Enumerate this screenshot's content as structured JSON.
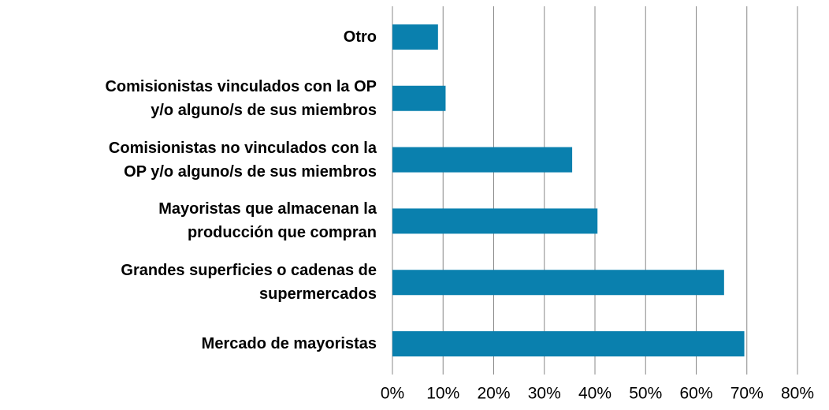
{
  "chart_data": {
    "type": "barh",
    "categories": [
      "Otro",
      "Comisionistas vinculados con la OP\ny/o alguno/s de sus miembros",
      "Comisionistas no vinculados con la\nOP y/o alguno/s de sus miembros",
      "Mayoristas que almacenan la\nproducción que compran",
      "Grandes superficies o cadenas de\nsupermercados",
      "Mercado de mayoristas"
    ],
    "values": [
      9,
      10.5,
      35.5,
      40.5,
      65.5,
      69.5
    ],
    "color": "#0a80ae",
    "xlim": [
      0,
      80
    ],
    "xticks": [
      {
        "value": 0,
        "label": "0%"
      },
      {
        "value": 10,
        "label": "10%"
      },
      {
        "value": 20,
        "label": "20%"
      },
      {
        "value": 30,
        "label": "30%"
      },
      {
        "value": 40,
        "label": "40%"
      },
      {
        "value": 50,
        "label": "50%"
      },
      {
        "value": 60,
        "label": "60%"
      },
      {
        "value": 70,
        "label": "70%"
      },
      {
        "value": 80,
        "label": "80%"
      }
    ],
    "grid": true
  }
}
